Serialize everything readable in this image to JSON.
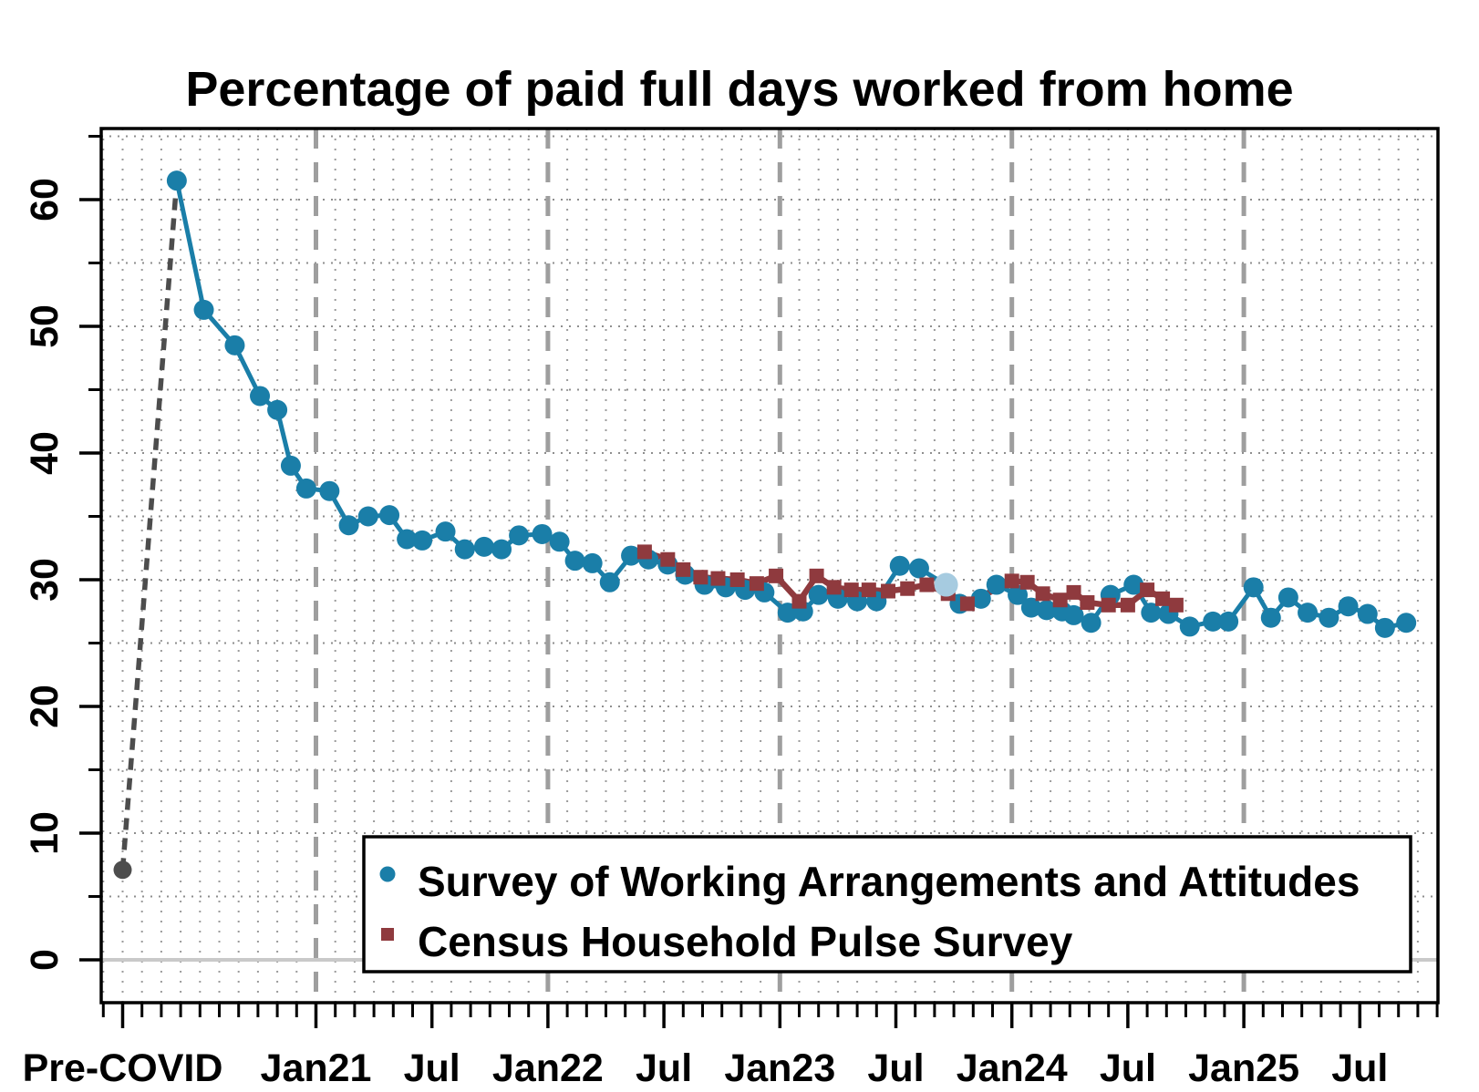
{
  "title": "Percentage of paid full days worked from home",
  "legend": {
    "items": [
      {
        "label": "Survey of Working Arrangements and Attitudes",
        "marker": "circle"
      },
      {
        "label": "Census Household Pulse Survey",
        "marker": "square"
      }
    ]
  },
  "colors": {
    "swaa_blue": "#1a7ea8",
    "swaa_light_blue": "#a6cbe0",
    "hps_red": "#8f3a3e",
    "pre_covid_gray": "#4d4d4d",
    "jan_dashed_gridline": "#9e9e9e",
    "monthly_dotted_gridline": "#9b9b9b",
    "horizontal_dotted_gridline": "#8e8e8e",
    "zero_line": "#c9c9c9",
    "axis_black": "#000000"
  },
  "x_axis": {
    "unit": "months since Jan 2021 (decimal)",
    "major_ticks": [
      {
        "m": -10,
        "label": "Pre-COVID"
      },
      {
        "m": 0,
        "label": "Jan21"
      },
      {
        "m": 6,
        "label": "Jul"
      },
      {
        "m": 12,
        "label": "Jan22"
      },
      {
        "m": 18,
        "label": "Jul"
      },
      {
        "m": 24,
        "label": "Jan23"
      },
      {
        "m": 30,
        "label": "Jul"
      },
      {
        "m": 36,
        "label": "Jan24"
      },
      {
        "m": 42,
        "label": "Jul"
      },
      {
        "m": 48,
        "label": "Jan25"
      },
      {
        "m": 54,
        "label": "Jul"
      }
    ],
    "minor_tick_months": [
      -11,
      58
    ],
    "jan_dashed_lines_m": [
      0,
      12,
      24,
      36,
      48
    ]
  },
  "y_axis": {
    "major_ticks": [
      0,
      10,
      20,
      30,
      40,
      50,
      60
    ],
    "minor_step": 5,
    "minor_max": 65,
    "grid_step": 5,
    "zero_line": true
  },
  "chart_data": {
    "type": "line",
    "title": "Percentage of paid full days worked from home",
    "x_unit": "months since Jan 2021; -10 = Pre-COVID, first survey point = May/Jun 2020",
    "ylim": [
      -3.4,
      65.6
    ],
    "xlim_m": [
      -11.1,
      58.0
    ],
    "grid": "dotted monthly verticals, dotted horizontals every 5, gray dashed verticals each January",
    "legend_position": "bottom-center-right inside plot",
    "pre_covid": {
      "m": -10,
      "value": 7.1,
      "label": "Pre-COVID"
    },
    "series": [
      {
        "name": "Survey of Working Arrangements and Attitudes",
        "marker": "circle",
        "points": [
          [
            -7.2,
            61.5
          ],
          [
            -5.8,
            51.3
          ],
          [
            -4.2,
            48.5
          ],
          [
            -2.9,
            44.5
          ],
          [
            -2.0,
            43.4
          ],
          [
            -1.3,
            39.0
          ],
          [
            -0.5,
            37.2
          ],
          [
            0.7,
            37.0
          ],
          [
            1.7,
            34.3
          ],
          [
            2.7,
            35.0
          ],
          [
            3.8,
            35.1
          ],
          [
            4.7,
            33.2
          ],
          [
            5.5,
            33.1
          ],
          [
            6.7,
            33.8
          ],
          [
            7.7,
            32.4
          ],
          [
            8.7,
            32.6
          ],
          [
            9.6,
            32.4
          ],
          [
            10.5,
            33.5
          ],
          [
            11.7,
            33.6
          ],
          [
            12.6,
            33.0
          ],
          [
            13.4,
            31.5
          ],
          [
            14.3,
            31.3
          ],
          [
            15.2,
            29.8
          ],
          [
            16.3,
            31.9
          ],
          [
            17.2,
            31.6
          ],
          [
            18.2,
            31.2
          ],
          [
            19.1,
            30.4
          ],
          [
            20.1,
            29.6
          ],
          [
            21.2,
            29.4
          ],
          [
            22.2,
            29.2
          ],
          [
            23.2,
            29.0
          ],
          [
            24.4,
            27.4
          ],
          [
            25.2,
            27.5
          ],
          [
            26.0,
            28.8
          ],
          [
            27.0,
            28.5
          ],
          [
            28.0,
            28.3
          ],
          [
            29.0,
            28.3
          ],
          [
            30.2,
            31.1
          ],
          [
            31.2,
            30.9
          ],
          [
            33.3,
            28.1
          ],
          [
            34.4,
            28.5
          ],
          [
            35.2,
            29.6
          ],
          [
            36.3,
            28.8
          ],
          [
            37.0,
            27.8
          ],
          [
            37.8,
            27.6
          ],
          [
            38.6,
            27.5
          ],
          [
            39.2,
            27.2
          ],
          [
            40.1,
            26.6
          ],
          [
            41.1,
            28.8
          ],
          [
            42.3,
            29.6
          ],
          [
            43.2,
            27.4
          ],
          [
            44.1,
            27.3
          ],
          [
            45.2,
            26.3
          ],
          [
            46.4,
            26.7
          ],
          [
            47.2,
            26.7
          ],
          [
            48.5,
            29.4
          ],
          [
            49.4,
            27.0
          ],
          [
            50.3,
            28.6
          ],
          [
            51.3,
            27.4
          ],
          [
            52.4,
            27.0
          ],
          [
            53.4,
            27.9
          ],
          [
            54.4,
            27.3
          ],
          [
            55.3,
            26.2
          ],
          [
            56.4,
            26.6
          ]
        ],
        "light_point": {
          "m": 32.6,
          "value": 29.6
        }
      },
      {
        "name": "Census Household Pulse Survey",
        "marker": "square",
        "points": [
          [
            17.0,
            32.2
          ],
          [
            18.2,
            31.6
          ],
          [
            19.0,
            30.8
          ],
          [
            19.9,
            30.2
          ],
          [
            20.8,
            30.1
          ],
          [
            21.8,
            30.0
          ],
          [
            22.8,
            29.7
          ],
          [
            23.8,
            30.3
          ],
          [
            25.0,
            28.3
          ],
          [
            25.9,
            30.3
          ],
          [
            26.8,
            29.4
          ],
          [
            27.7,
            29.2
          ],
          [
            28.6,
            29.2
          ],
          [
            29.6,
            29.1
          ],
          [
            30.6,
            29.3
          ],
          [
            31.6,
            29.6
          ],
          [
            32.7,
            28.9
          ],
          [
            33.7,
            28.1
          ],
          [
            36.0,
            29.9
          ],
          [
            36.8,
            29.8
          ],
          [
            37.6,
            28.9
          ],
          [
            38.5,
            28.4
          ],
          [
            39.2,
            29.0
          ],
          [
            39.9,
            28.2
          ],
          [
            41.0,
            28.0
          ],
          [
            42.0,
            28.0
          ],
          [
            43.0,
            29.2
          ],
          [
            43.8,
            28.5
          ],
          [
            44.5,
            28.0
          ]
        ]
      }
    ]
  }
}
